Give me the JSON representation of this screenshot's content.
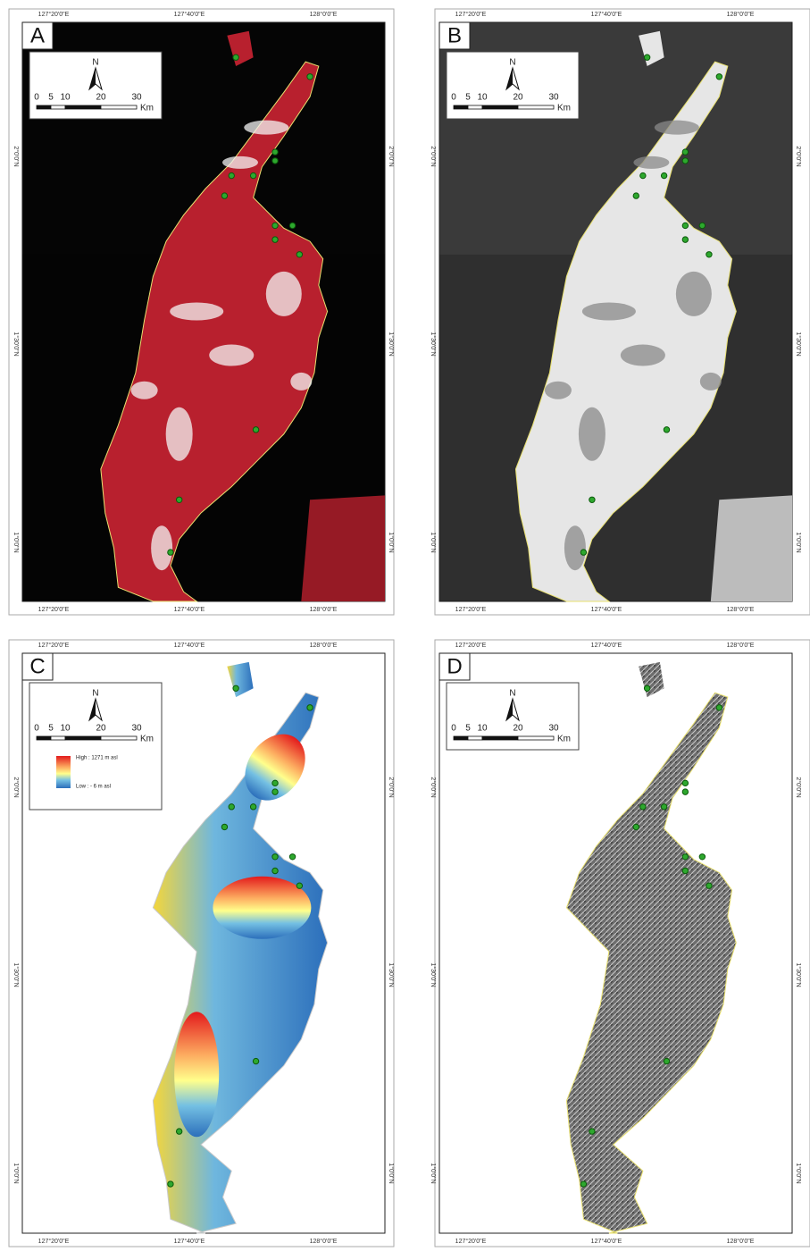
{
  "panels": [
    {
      "label": "A",
      "x_labels": [
        "127°20'0\"E",
        "127°40'0\"E",
        "128°0'0\"E"
      ],
      "y_labels": [
        "2°0'0\"N",
        "1°30'0\"N",
        "1°0'0\"N"
      ],
      "scale": {
        "north": "N",
        "ticks": [
          "0",
          "5",
          "10",
          "20",
          "30"
        ],
        "unit": "Km"
      }
    },
    {
      "label": "B",
      "x_labels": [
        "127°20'0\"E",
        "127°40'0\"E",
        "128°0'0\"E"
      ],
      "y_labels": [
        "2°0'0\"N",
        "1°30'0\"N",
        "1°0'0\"N"
      ],
      "scale": {
        "north": "N",
        "ticks": [
          "0",
          "5",
          "10",
          "20",
          "30"
        ],
        "unit": "Km"
      }
    },
    {
      "label": "C",
      "x_labels": [
        "127°20'0\"E",
        "127°40'0\"E",
        "128°0'0\"E"
      ],
      "y_labels": [
        "2°0'0\"N",
        "1°30'0\"N",
        "1°0'0\"N"
      ],
      "scale": {
        "north": "N",
        "ticks": [
          "0",
          "5",
          "10",
          "20",
          "30"
        ],
        "unit": "Km"
      },
      "legend": {
        "high": "High : 1271 m asl",
        "low": "Low : - 6 m asl"
      }
    },
    {
      "label": "D",
      "x_labels": [
        "127°20'0\"E",
        "127°40'0\"E",
        "128°0'0\"E"
      ],
      "y_labels": [
        "2°0'0\"N",
        "1°30'0\"N",
        "1°0'0\"N"
      ],
      "scale": {
        "north": "N",
        "ticks": [
          "0",
          "5",
          "10",
          "20",
          "30"
        ],
        "unit": "Km"
      }
    }
  ]
}
